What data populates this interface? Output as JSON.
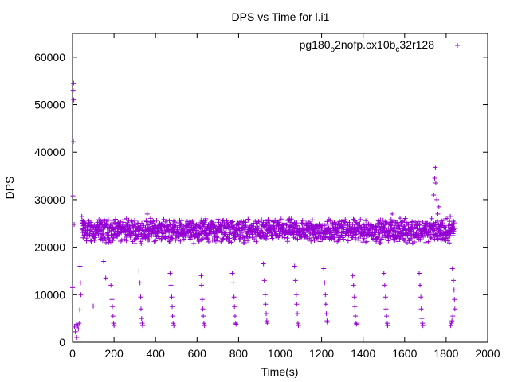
{
  "chart_data": {
    "type": "scatter",
    "title": "DPS vs Time for l.i1",
    "xlabel": "Time(s)",
    "ylabel": "DPS",
    "xlim": [
      0,
      2000
    ],
    "ylim": [
      0,
      65000
    ],
    "xticks": [
      0,
      200,
      400,
      600,
      800,
      1000,
      1200,
      1400,
      1600,
      1800,
      2000
    ],
    "yticks": [
      0,
      10000,
      20000,
      30000,
      40000,
      50000,
      60000
    ],
    "grid": false,
    "legend_position": "top-right",
    "marker": "+",
    "series": [
      {
        "name": "pg180_o2nofp.cx10b_c32r128",
        "color": "#9400d3",
        "description_of_pattern": "steady band",
        "x_range": [
          0,
          1840
        ],
        "band": [
          21000,
          26000
        ],
        "points": [
          [
            0,
            11500
          ],
          [
            2,
            30800
          ],
          [
            3,
            53000
          ],
          [
            5,
            54500
          ],
          [
            6,
            51000
          ],
          [
            4,
            42200
          ],
          [
            8,
            24800
          ],
          [
            10,
            3200
          ],
          [
            14,
            2200
          ],
          [
            18,
            3800
          ],
          [
            20,
            1000
          ],
          [
            24,
            3500
          ],
          [
            28,
            2800
          ],
          [
            32,
            4000
          ],
          [
            35,
            6800
          ],
          [
            36,
            16000
          ],
          [
            38,
            12500
          ],
          [
            40,
            10000
          ],
          [
            45,
            26500
          ],
          [
            48,
            25000
          ],
          [
            52,
            24500
          ],
          [
            58,
            23000
          ],
          [
            100,
            7600
          ],
          [
            150,
            17000
          ],
          [
            160,
            13500
          ],
          [
            185,
            12000
          ],
          [
            190,
            9000
          ],
          [
            192,
            7500
          ],
          [
            195,
            5500
          ],
          [
            198,
            4000
          ],
          [
            200,
            3500
          ],
          [
            320,
            15000
          ],
          [
            325,
            12500
          ],
          [
            328,
            9500
          ],
          [
            330,
            7000
          ],
          [
            333,
            5000
          ],
          [
            336,
            4000
          ],
          [
            338,
            3500
          ],
          [
            360,
            27000
          ],
          [
            470,
            14500
          ],
          [
            474,
            12000
          ],
          [
            478,
            9500
          ],
          [
            480,
            7500
          ],
          [
            482,
            5500
          ],
          [
            485,
            4000
          ],
          [
            488,
            3500
          ],
          [
            620,
            14000
          ],
          [
            622,
            12000
          ],
          [
            625,
            9000
          ],
          [
            628,
            7000
          ],
          [
            630,
            5500
          ],
          [
            633,
            4000
          ],
          [
            636,
            3500
          ],
          [
            770,
            14500
          ],
          [
            774,
            12500
          ],
          [
            778,
            9500
          ],
          [
            780,
            7500
          ],
          [
            783,
            5500
          ],
          [
            786,
            4000
          ],
          [
            788,
            3800
          ],
          [
            920,
            16500
          ],
          [
            924,
            13000
          ],
          [
            928,
            10000
          ],
          [
            930,
            8000
          ],
          [
            933,
            6000
          ],
          [
            936,
            4500
          ],
          [
            938,
            4000
          ],
          [
            1070,
            16000
          ],
          [
            1074,
            13000
          ],
          [
            1078,
            10000
          ],
          [
            1080,
            8000
          ],
          [
            1083,
            6000
          ],
          [
            1086,
            4000
          ],
          [
            1088,
            3500
          ],
          [
            1210,
            15500
          ],
          [
            1214,
            12500
          ],
          [
            1218,
            10000
          ],
          [
            1220,
            8000
          ],
          [
            1223,
            6000
          ],
          [
            1226,
            4500
          ],
          [
            1228,
            4200
          ],
          [
            1350,
            14000
          ],
          [
            1354,
            12000
          ],
          [
            1358,
            9500
          ],
          [
            1360,
            7500
          ],
          [
            1363,
            5500
          ],
          [
            1366,
            4000
          ],
          [
            1368,
            3800
          ],
          [
            1500,
            14500
          ],
          [
            1504,
            12000
          ],
          [
            1508,
            9500
          ],
          [
            1510,
            7000
          ],
          [
            1513,
            5500
          ],
          [
            1516,
            4000
          ],
          [
            1518,
            3500
          ],
          [
            1540,
            27000
          ],
          [
            1550,
            25500
          ],
          [
            1670,
            14500
          ],
          [
            1674,
            12000
          ],
          [
            1678,
            9500
          ],
          [
            1680,
            7000
          ],
          [
            1683,
            5000
          ],
          [
            1686,
            4000
          ],
          [
            1688,
            3500
          ],
          [
            1720,
            24500
          ],
          [
            1730,
            26000
          ],
          [
            1740,
            31000
          ],
          [
            1745,
            34500
          ],
          [
            1748,
            36800
          ],
          [
            1750,
            33500
          ],
          [
            1755,
            30000
          ],
          [
            1760,
            27000
          ],
          [
            1765,
            28500
          ],
          [
            1770,
            23000
          ],
          [
            1780,
            25500
          ],
          [
            1820,
            26500
          ],
          [
            1830,
            15500
          ],
          [
            1835,
            13000
          ],
          [
            1838,
            11000
          ],
          [
            1840,
            9000
          ],
          [
            1842,
            7000
          ],
          [
            1832,
            5500
          ],
          [
            1828,
            4500
          ],
          [
            1825,
            4000
          ],
          [
            1822,
            3500
          ]
        ]
      }
    ]
  },
  "legend_label_parts": {
    "a": "pg180",
    "a_sub": "o",
    "b": "2nofp.cx10b",
    "b_sub": "c",
    "c": "32r128"
  }
}
